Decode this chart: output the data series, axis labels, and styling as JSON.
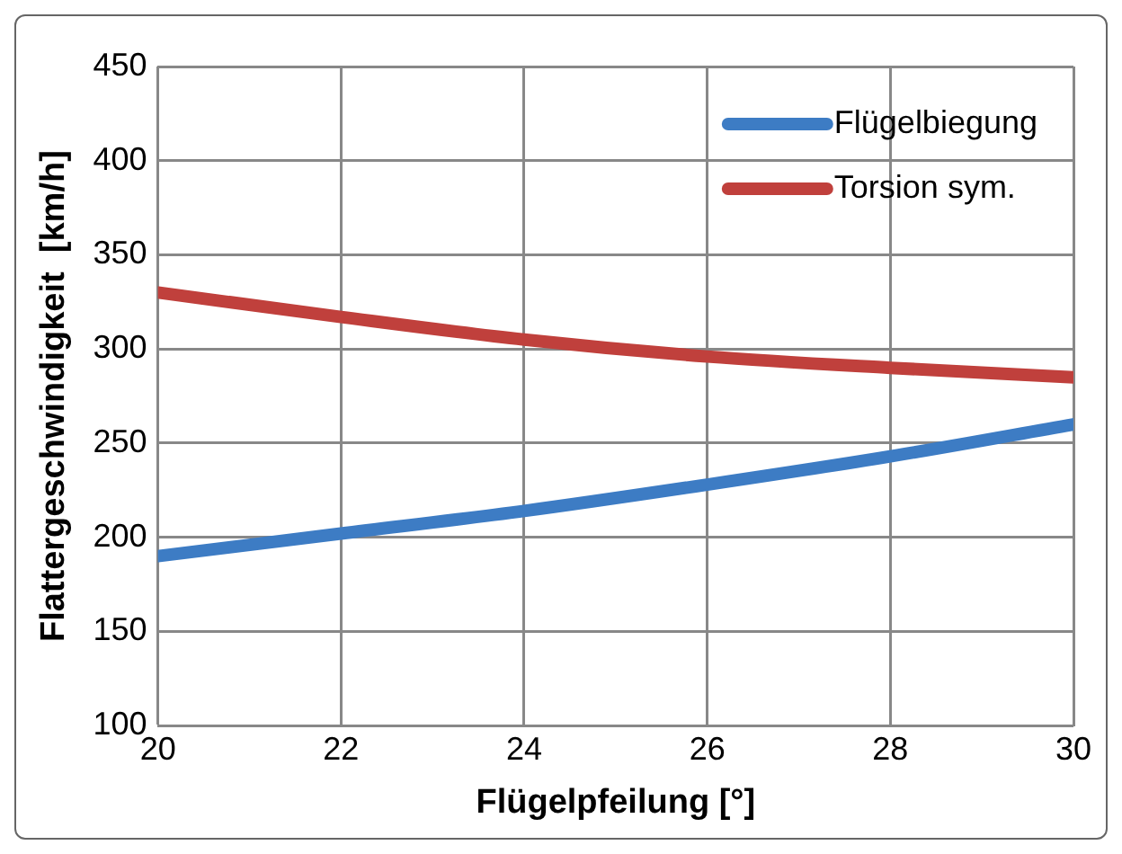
{
  "chart_data": {
    "type": "line",
    "xlabel": "Flügelpfeilung [°]",
    "ylabel": "Flattergeschwindigkeit  [km/h]",
    "x": [
      20,
      22,
      24,
      26,
      28,
      30
    ],
    "series": [
      {
        "name": "Flügelbiegung",
        "color": "#3d7cc4",
        "values": [
          190,
          202,
          214,
          228,
          243,
          260
        ]
      },
      {
        "name": "Torsion sym.",
        "color": "#c0403c",
        "values": [
          330,
          317,
          305,
          296,
          290,
          285
        ]
      }
    ],
    "xlim": [
      20,
      30
    ],
    "xticks": [
      20,
      22,
      24,
      26,
      28,
      30
    ],
    "ylim": [
      100,
      450
    ],
    "yticks": [
      100,
      150,
      200,
      250,
      300,
      350,
      400,
      450
    ],
    "grid": true,
    "legend": "top right",
    "marker": "none",
    "line_style": "solid"
  }
}
